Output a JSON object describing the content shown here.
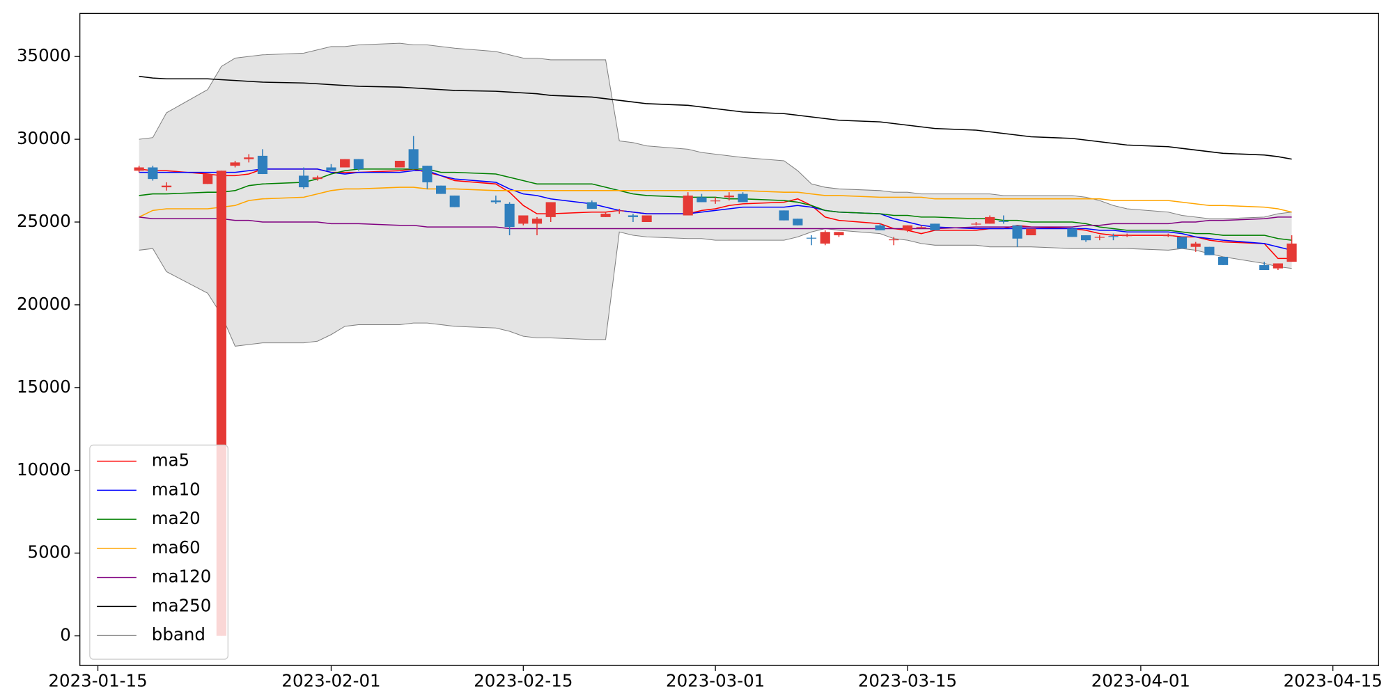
{
  "chart_data": {
    "type": "candlestick",
    "x": [
      "2023-01-18",
      "2023-01-19",
      "2023-01-20",
      "2023-01-23",
      "2023-01-24",
      "2023-01-25",
      "2023-01-26",
      "2023-01-27",
      "2023-01-30",
      "2023-01-31",
      "2023-02-01",
      "2023-02-02",
      "2023-02-03",
      "2023-02-06",
      "2023-02-07",
      "2023-02-08",
      "2023-02-09",
      "2023-02-10",
      "2023-02-13",
      "2023-02-14",
      "2023-02-15",
      "2023-02-16",
      "2023-02-17",
      "2023-02-20",
      "2023-02-21",
      "2023-02-22",
      "2023-02-23",
      "2023-02-24",
      "2023-02-27",
      "2023-02-28",
      "2023-03-01",
      "2023-03-02",
      "2023-03-03",
      "2023-03-06",
      "2023-03-07",
      "2023-03-08",
      "2023-03-09",
      "2023-03-10",
      "2023-03-13",
      "2023-03-14",
      "2023-03-15",
      "2023-03-16",
      "2023-03-17",
      "2023-03-20",
      "2023-03-21",
      "2023-03-22",
      "2023-03-23",
      "2023-03-24",
      "2023-03-27",
      "2023-03-28",
      "2023-03-29",
      "2023-03-30",
      "2023-03-31",
      "2023-04-03",
      "2023-04-04",
      "2023-04-05",
      "2023-04-06",
      "2023-04-07",
      "2023-04-10",
      "2023-04-11",
      "2023-04-12"
    ],
    "open": [
      28100,
      28300,
      27100,
      27300,
      0,
      28400,
      28800,
      29000,
      27800,
      27600,
      28300,
      28300,
      28800,
      28300,
      29400,
      28400,
      27200,
      26600,
      26300,
      26100,
      24900,
      24900,
      25300,
      26200,
      25300,
      25650,
      25400,
      25000,
      25400,
      26500,
      26250,
      26500,
      26700,
      25700,
      25200,
      24050,
      23700,
      24200,
      24800,
      23900,
      24500,
      24650,
      24900,
      24850,
      24900,
      25050,
      24800,
      24200,
      24600,
      24200,
      24050,
      24150,
      24150,
      24150,
      24100,
      23500,
      23500,
      22900,
      22400,
      22200,
      22600
    ],
    "high": [
      28400,
      28400,
      27400,
      27900,
      28100,
      28700,
      29100,
      29400,
      28300,
      27800,
      28500,
      28800,
      28800,
      28700,
      30200,
      28400,
      27200,
      26600,
      26600,
      26200,
      25400,
      25300,
      26200,
      26300,
      25600,
      25800,
      25500,
      25400,
      26800,
      26700,
      26500,
      26800,
      26800,
      25700,
      25200,
      24200,
      24500,
      24400,
      24900,
      24100,
      24800,
      24800,
      24900,
      25000,
      25400,
      25400,
      24800,
      24600,
      24700,
      24200,
      24200,
      24300,
      24300,
      24300,
      24100,
      23800,
      23500,
      22900,
      22600,
      22500,
      24200
    ],
    "low": [
      28000,
      27500,
      26900,
      27300,
      0,
      28300,
      28600,
      27900,
      27000,
      27500,
      28100,
      28300,
      28100,
      28300,
      28200,
      27000,
      26700,
      25900,
      26100,
      24200,
      24800,
      24200,
      25000,
      25800,
      25300,
      25500,
      25000,
      25000,
      25400,
      26200,
      26100,
      26300,
      26200,
      25100,
      24800,
      23600,
      23600,
      24100,
      24500,
      23600,
      24400,
      24600,
      24500,
      24800,
      24900,
      24900,
      23500,
      24200,
      24100,
      23800,
      23900,
      23900,
      24100,
      24100,
      23400,
      23200,
      23000,
      22400,
      22100,
      22100,
      22600
    ],
    "close": [
      28300,
      27600,
      27200,
      27900,
      28100,
      28600,
      28900,
      27900,
      27100,
      27700,
      28100,
      28800,
      28200,
      28700,
      28200,
      27400,
      26700,
      25900,
      26200,
      24700,
      25400,
      25200,
      26200,
      25800,
      25500,
      25700,
      25300,
      25400,
      26600,
      26200,
      26300,
      26600,
      26200,
      25100,
      24800,
      24000,
      24400,
      24400,
      24500,
      23950,
      24800,
      24700,
      24500,
      24900,
      25300,
      25000,
      24000,
      24600,
      24100,
      23900,
      24100,
      24100,
      24200,
      24200,
      23400,
      23700,
      23000,
      22400,
      22100,
      22500,
      23700
    ],
    "up_color": "#e53935",
    "down_color": "#2f7fbd",
    "series": [
      {
        "name": "ma5",
        "color": "#ff0000",
        "values": [
          28200,
          28100,
          28100,
          27900,
          27800,
          27800,
          27900,
          28200,
          28200,
          28200,
          28000,
          28000,
          28000,
          28100,
          28200,
          28000,
          27800,
          27500,
          27300,
          26800,
          26000,
          25500,
          25500,
          25600,
          25600,
          25700,
          25600,
          25500,
          25500,
          25700,
          25800,
          26000,
          26100,
          26200,
          26400,
          26000,
          25300,
          25100,
          24900,
          24600,
          24500,
          24300,
          24500,
          24500,
          24600,
          24600,
          24800,
          24700,
          24600,
          24500,
          24300,
          24200,
          24200,
          24200,
          24100,
          24100,
          23900,
          23800,
          23700,
          22800,
          22800
        ]
      },
      {
        "name": "ma10",
        "color": "#0000ff",
        "values": [
          28000,
          28000,
          28000,
          28000,
          28000,
          28000,
          28100,
          28200,
          28200,
          28200,
          28000,
          27900,
          28000,
          28000,
          28100,
          28100,
          27800,
          27600,
          27400,
          27000,
          26700,
          26600,
          26400,
          26100,
          25900,
          25700,
          25600,
          25500,
          25500,
          25600,
          25700,
          25800,
          25900,
          25900,
          26000,
          25900,
          25700,
          25600,
          25500,
          25200,
          25000,
          24800,
          24700,
          24600,
          24600,
          24600,
          24600,
          24600,
          24600,
          24600,
          24500,
          24500,
          24400,
          24400,
          24300,
          24100,
          24000,
          23900,
          23700,
          23500,
          23300
        ]
      },
      {
        "name": "ma20",
        "color": "#008000",
        "values": [
          26600,
          26700,
          26700,
          26800,
          26800,
          26900,
          27200,
          27300,
          27400,
          27600,
          27900,
          28100,
          28200,
          28200,
          28200,
          28200,
          28000,
          28000,
          27900,
          27700,
          27500,
          27300,
          27300,
          27300,
          27100,
          26900,
          26700,
          26600,
          26500,
          26500,
          26500,
          26400,
          26400,
          26300,
          26200,
          26000,
          25700,
          25600,
          25500,
          25400,
          25400,
          25300,
          25300,
          25200,
          25200,
          25100,
          25100,
          25000,
          25000,
          24900,
          24700,
          24600,
          24500,
          24500,
          24400,
          24300,
          24300,
          24200,
          24200,
          24000,
          23900
        ]
      },
      {
        "name": "ma60",
        "color": "#ffa500",
        "values": [
          25300,
          25700,
          25800,
          25800,
          25900,
          26000,
          26300,
          26400,
          26500,
          26700,
          26900,
          27000,
          27000,
          27100,
          27100,
          27000,
          27000,
          27000,
          26900,
          26900,
          26900,
          26900,
          26900,
          26900,
          26900,
          26900,
          26900,
          26900,
          26900,
          26900,
          26900,
          26900,
          26900,
          26800,
          26800,
          26700,
          26600,
          26600,
          26500,
          26500,
          26500,
          26500,
          26400,
          26400,
          26400,
          26400,
          26400,
          26400,
          26400,
          26400,
          26400,
          26300,
          26300,
          26300,
          26200,
          26100,
          26000,
          26000,
          25900,
          25800,
          25600
        ]
      },
      {
        "name": "ma120",
        "color": "#800080",
        "values": [
          25300,
          25200,
          25200,
          25200,
          25200,
          25100,
          25100,
          25000,
          25000,
          25000,
          24900,
          24900,
          24900,
          24800,
          24800,
          24700,
          24700,
          24700,
          24700,
          24600,
          24600,
          24600,
          24600,
          24600,
          24600,
          24600,
          24600,
          24600,
          24600,
          24600,
          24600,
          24600,
          24600,
          24600,
          24600,
          24600,
          24600,
          24600,
          24600,
          24600,
          24600,
          24600,
          24600,
          24700,
          24700,
          24700,
          24700,
          24700,
          24700,
          24800,
          24800,
          24900,
          24900,
          24900,
          25000,
          25000,
          25100,
          25100,
          25200,
          25300,
          25300
        ]
      },
      {
        "name": "ma250",
        "color": "#000000",
        "values": [
          33800,
          33700,
          33650,
          33650,
          33600,
          33550,
          33500,
          33450,
          33400,
          33350,
          33300,
          33250,
          33200,
          33150,
          33100,
          33050,
          33000,
          32950,
          32900,
          32850,
          32800,
          32750,
          32650,
          32550,
          32450,
          32350,
          32250,
          32150,
          32050,
          31950,
          31850,
          31750,
          31650,
          31550,
          31450,
          31350,
          31250,
          31150,
          31050,
          30950,
          30850,
          30750,
          30650,
          30550,
          30450,
          30350,
          30250,
          30150,
          30050,
          29950,
          29850,
          29750,
          29650,
          29550,
          29450,
          29350,
          29250,
          29150,
          29050,
          28950,
          28800
        ]
      }
    ],
    "bband": {
      "name": "bband",
      "color": "#808080",
      "fill": "#e4e4e4",
      "upper": [
        30000,
        30100,
        31600,
        33000,
        34400,
        34900,
        35000,
        35100,
        35200,
        35400,
        35600,
        35600,
        35700,
        35800,
        35700,
        35700,
        35600,
        35500,
        35300,
        35100,
        34900,
        34900,
        34800,
        34800,
        34800,
        29900,
        29800,
        29600,
        29400,
        29200,
        29100,
        29000,
        28900,
        28700,
        28100,
        27300,
        27100,
        27000,
        26900,
        26800,
        26800,
        26700,
        26700,
        26700,
        26700,
        26600,
        26600,
        26600,
        26600,
        26500,
        26300,
        26000,
        25800,
        25600,
        25400,
        25300,
        25200,
        25200,
        25300,
        25500,
        25600
      ],
      "lower": [
        23300,
        23400,
        22000,
        20700,
        19400,
        17500,
        17600,
        17700,
        17700,
        17800,
        18200,
        18700,
        18800,
        18800,
        18900,
        18900,
        18800,
        18700,
        18600,
        18400,
        18100,
        18000,
        18000,
        17900,
        17900,
        24400,
        24200,
        24100,
        24000,
        24000,
        23900,
        23900,
        23900,
        23900,
        24100,
        24400,
        24600,
        24500,
        24300,
        24000,
        23900,
        23700,
        23600,
        23600,
        23500,
        23500,
        23500,
        23500,
        23400,
        23400,
        23400,
        23400,
        23400,
        23300,
        23400,
        23300,
        23100,
        22900,
        22500,
        22300,
        22200
      ]
    },
    "xlim": [
      "2023-01-13T16:30",
      "2023-04-18T08:00"
    ],
    "xticks": [
      "2023-01-15",
      "2023-02-01",
      "2023-02-15",
      "2023-03-01",
      "2023-03-15",
      "2023-04-01",
      "2023-04-15"
    ],
    "ylim": [
      -1790,
      37600
    ],
    "yticks": [
      0,
      5000,
      10000,
      15000,
      20000,
      25000,
      30000,
      35000
    ],
    "legend": "lower left"
  }
}
